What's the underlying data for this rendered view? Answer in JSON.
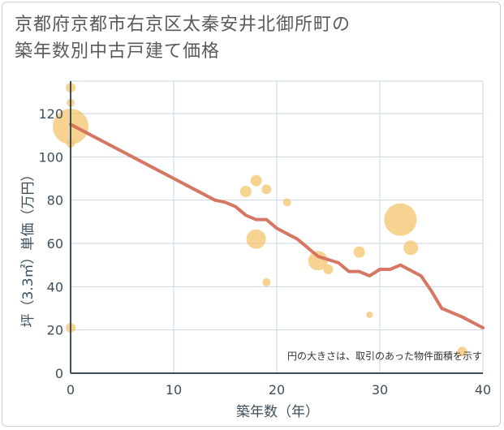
{
  "title_line1": "京都府京都市右京区太秦安井北御所町の",
  "title_line2": "築年数別中古戸建て価格",
  "chart_data": {
    "type": "scatter",
    "title": "京都府京都市右京区太秦安井北御所町の築年数別中古戸建て価格",
    "xlabel": "築年数（年）",
    "ylabel": "坪（3.3㎡）単価（万円）",
    "xlim": [
      0,
      40
    ],
    "ylim": [
      0,
      135
    ],
    "xticks": [
      0,
      10,
      20,
      30,
      40
    ],
    "yticks": [
      0,
      20,
      40,
      60,
      80,
      100,
      120
    ],
    "grid": true,
    "note": "円の大きさは、取引のあった物件面積を示す",
    "colors": {
      "bubble": "#f2c063",
      "line": "#d4705c",
      "grid": "#c9d6e3",
      "axis": "#3d4f5c"
    },
    "bubbles": [
      {
        "x": 0,
        "y": 132,
        "size": 6
      },
      {
        "x": 0,
        "y": 125,
        "size": 5
      },
      {
        "x": 0,
        "y": 114,
        "size": 22
      },
      {
        "x": 0,
        "y": 106,
        "size": 5
      },
      {
        "x": 0,
        "y": 21,
        "size": 6
      },
      {
        "x": 17,
        "y": 84,
        "size": 7
      },
      {
        "x": 18,
        "y": 89,
        "size": 7
      },
      {
        "x": 19,
        "y": 85,
        "size": 6
      },
      {
        "x": 18,
        "y": 62,
        "size": 12
      },
      {
        "x": 19,
        "y": 42,
        "size": 5
      },
      {
        "x": 21,
        "y": 79,
        "size": 5
      },
      {
        "x": 24,
        "y": 52,
        "size": 12
      },
      {
        "x": 25,
        "y": 48,
        "size": 6
      },
      {
        "x": 28,
        "y": 56,
        "size": 7
      },
      {
        "x": 29,
        "y": 27,
        "size": 4
      },
      {
        "x": 32,
        "y": 71,
        "size": 20
      },
      {
        "x": 33,
        "y": 58,
        "size": 9
      },
      {
        "x": 38,
        "y": 10,
        "size": 6
      }
    ],
    "trend": {
      "x": [
        0,
        2,
        4,
        6,
        8,
        10,
        12,
        14,
        15,
        16,
        17,
        18,
        19,
        20,
        22,
        24,
        26,
        27,
        28,
        29,
        30,
        31,
        32,
        34,
        35,
        36,
        38,
        40
      ],
      "y": [
        115,
        110,
        105,
        100,
        95,
        90,
        85,
        80,
        79,
        77,
        73,
        71,
        71,
        67,
        62,
        54,
        51,
        47,
        47,
        45,
        48,
        48,
        50,
        45,
        38,
        30,
        26,
        21
      ]
    }
  }
}
